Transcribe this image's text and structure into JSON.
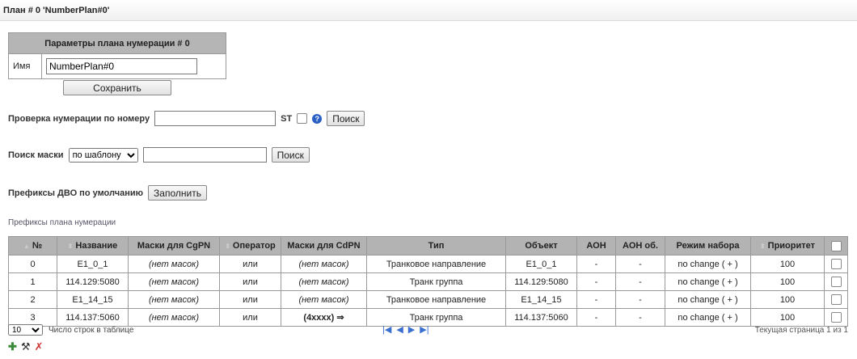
{
  "title": "План # 0 'NumberPlan#0'",
  "params": {
    "header": "Параметры плана нумерации # 0",
    "name_label": "Имя",
    "name_value": "NumberPlan#0",
    "save": "Сохранить"
  },
  "check": {
    "label": "Проверка нумерации по номеру",
    "value": "",
    "st": "ST",
    "search": "Поиск",
    "help_icon": "help-icon"
  },
  "mask": {
    "label": "Поиск маски",
    "mode": "по шаблону",
    "value": "",
    "search": "Поиск"
  },
  "prefix": {
    "label": "Префиксы ДВО по умолчанию",
    "fill": "Заполнить"
  },
  "section": "Префиксы плана нумерации",
  "table": {
    "headers": [
      "№",
      "Название",
      "Маски для CgPN",
      "Оператор",
      "Маски для CdPN",
      "Тип",
      "Объект",
      "АОН",
      "АОН об.",
      "Режим набора",
      "Приоритет"
    ],
    "rows": [
      [
        "0",
        "E1_0_1",
        "(нет масок)",
        "или",
        "(нет масок)",
        "Транковое направление",
        "E1_0_1",
        "-",
        "-",
        "no change ( + )",
        "100"
      ],
      [
        "1",
        "114.129:5080",
        "(нет масок)",
        "или",
        "(нет масок)",
        "Транк группа",
        "114.129:5080",
        "-",
        "-",
        "no change ( + )",
        "100"
      ],
      [
        "2",
        "E1_14_15",
        "(нет масок)",
        "или",
        "(нет масок)",
        "Транковое направление",
        "E1_14_15",
        "-",
        "-",
        "no change ( + )",
        "100"
      ],
      [
        "3",
        "114.137:5060",
        "(нет масок)",
        "или",
        "(4xxxx) ⇒",
        "Транк группа",
        "114.137:5060",
        "-",
        "-",
        "no change ( + )",
        "100"
      ]
    ]
  },
  "footer": {
    "rows_per_page": "10",
    "rows_label": "Число строк в таблице",
    "page_info": "Текущая страница 1 из 1"
  }
}
